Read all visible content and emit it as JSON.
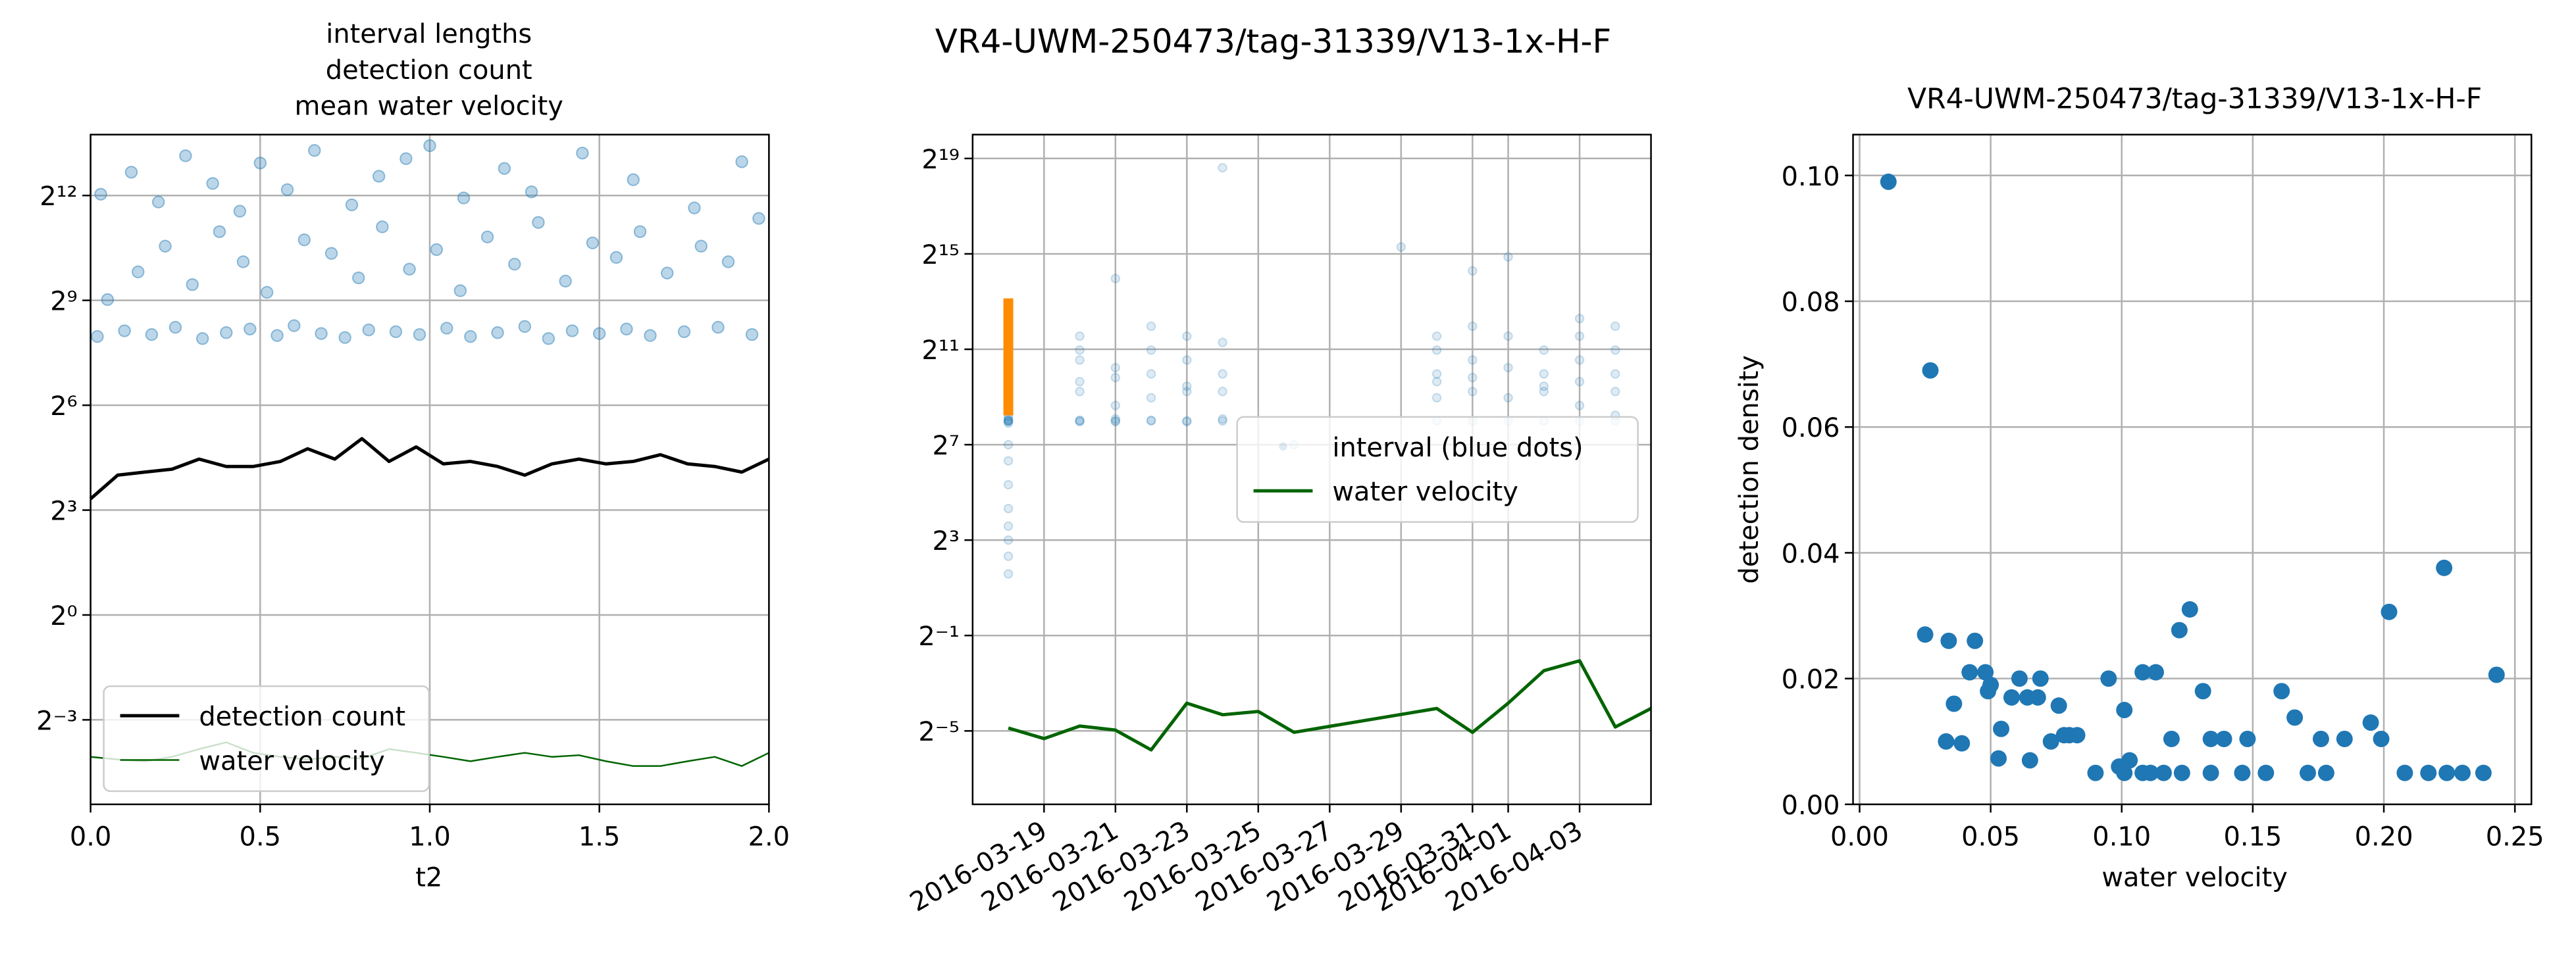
{
  "chart_data": [
    {
      "type": "line",
      "title": [
        "interval lengths",
        "detection count",
        "mean water velocity"
      ],
      "xlabel": "t2",
      "xlim": [
        0,
        2
      ],
      "xticks": [
        {
          "value": 0,
          "label": "0.0"
        },
        {
          "value": 0.5,
          "label": "0.5"
        },
        {
          "value": 1,
          "label": "1.0"
        },
        {
          "value": 1.5,
          "label": "1.5"
        },
        {
          "value": 2,
          "label": "2.0"
        }
      ],
      "yscale": "log",
      "ylim": [
        0.0234,
        13700
      ],
      "yticks": [
        {
          "value": 0.125,
          "label": "2⁻³"
        },
        {
          "value": 1,
          "label": "2⁰"
        },
        {
          "value": 8,
          "label": "2³"
        },
        {
          "value": 64,
          "label": "2⁶"
        },
        {
          "value": 512,
          "label": "2⁹"
        },
        {
          "value": 4096,
          "label": "2¹²"
        }
      ],
      "grid": true,
      "legend": "lower left",
      "series": [
        {
          "type": "scatter",
          "color": "#1f77b4",
          "alpha": 0.3,
          "x": [
            0.02,
            0.1,
            0.18,
            0.25,
            0.33,
            0.4,
            0.47,
            0.55,
            0.6,
            0.68,
            0.75,
            0.82,
            0.9,
            0.97,
            1.05,
            1.12,
            1.2,
            1.28,
            1.35,
            1.42,
            1.5,
            1.58,
            1.65,
            1.75,
            1.85,
            1.95,
            0.05,
            0.14,
            0.22,
            0.3,
            0.38,
            0.45,
            0.52,
            0.63,
            0.71,
            0.79,
            0.86,
            0.94,
            1.02,
            1.09,
            1.17,
            1.25,
            1.32,
            1.4,
            1.48,
            1.55,
            1.62,
            1.7,
            1.8,
            1.88,
            1.97,
            0.03,
            0.12,
            0.2,
            0.28,
            0.36,
            0.44,
            0.5,
            0.58,
            0.66,
            0.77,
            0.85,
            0.93,
            1.0,
            1.1,
            1.22,
            1.3,
            1.45,
            1.6,
            1.78,
            1.92
          ],
          "values": [
            250,
            280,
            260,
            300,
            240,
            270,
            290,
            255,
            310,
            265,
            245,
            285,
            275,
            260,
            295,
            250,
            270,
            305,
            240,
            280,
            265,
            290,
            255,
            275,
            300,
            260,
            520,
            900,
            1500,
            700,
            2000,
            1100,
            600,
            1700,
            1300,
            800,
            2200,
            950,
            1400,
            620,
            1800,
            1050,
            2400,
            750,
            1600,
            1200,
            2000,
            880,
            1500,
            1100,
            2600,
            4200,
            6500,
            3600,
            9000,
            5200,
            3000,
            7800,
            4600,
            10000,
            3400,
            6000,
            8500,
            11000,
            3900,
            7000,
            4400,
            9500,
            5600,
            3200,
            8000
          ]
        },
        {
          "type": "line",
          "name": "detection count",
          "color": "#000000",
          "line_width": 2,
          "x": [
            0,
            0.08,
            0.16,
            0.24,
            0.32,
            0.4,
            0.48,
            0.56,
            0.64,
            0.72,
            0.8,
            0.88,
            0.96,
            1.04,
            1.12,
            1.2,
            1.28,
            1.36,
            1.44,
            1.52,
            1.6,
            1.68,
            1.76,
            1.84,
            1.92,
            2.0
          ],
          "values": [
            10,
            16,
            17,
            18,
            22,
            19,
            19,
            21,
            27,
            22,
            33,
            21,
            28,
            20,
            21,
            19,
            16,
            20,
            22,
            20,
            21,
            24,
            20,
            19,
            17,
            22
          ]
        },
        {
          "type": "line",
          "name": "water velocity",
          "color": "#006400",
          "line_width": 1,
          "x": [
            0,
            0.08,
            0.16,
            0.24,
            0.32,
            0.4,
            0.48,
            0.56,
            0.64,
            0.72,
            0.8,
            0.88,
            0.96,
            1.04,
            1.12,
            1.2,
            1.28,
            1.36,
            1.44,
            1.52,
            1.6,
            1.68,
            1.76,
            1.84,
            1.92,
            2.0
          ],
          "values": [
            0.06,
            0.057,
            0.055,
            0.06,
            0.07,
            0.08,
            0.065,
            0.06,
            0.057,
            0.06,
            0.058,
            0.07,
            0.065,
            0.06,
            0.055,
            0.06,
            0.065,
            0.06,
            0.062,
            0.055,
            0.05,
            0.05,
            0.055,
            0.06,
            0.05,
            0.065
          ]
        }
      ]
    },
    {
      "type": "line",
      "title": "VR4-UWM-250473/tag-31339/V13-1x-H-F",
      "xlim": [
        "2016-03-17",
        "2016-04-05"
      ],
      "xticks": [
        "2016-03-19",
        "2016-03-21",
        "2016-03-23",
        "2016-03-25",
        "2016-03-27",
        "2016-03-29",
        "2016-03-31",
        "2016-04-01",
        "2016-04-03"
      ],
      "xtick_rotation": 30,
      "yscale": "log",
      "ylim": [
        0.0037,
        1048576
      ],
      "yticks": [
        {
          "value": 0.03125,
          "label": "2⁻⁵"
        },
        {
          "value": 0.5,
          "label": "2⁻¹"
        },
        {
          "value": 8,
          "label": "2³"
        },
        {
          "value": 128,
          "label": "2⁷"
        },
        {
          "value": 2048,
          "label": "2¹¹"
        },
        {
          "value": 32768,
          "label": "2¹⁵"
        },
        {
          "value": 524288,
          "label": "2¹⁹"
        }
      ],
      "grid": true,
      "legend": "center right",
      "series": [
        {
          "type": "scatter",
          "name": "interval (blue dots)",
          "color": "#1f77b4",
          "alpha": 0.15,
          "x": [
            "2016-03-18",
            "2016-03-18",
            "2016-03-18",
            "2016-03-18",
            "2016-03-18",
            "2016-03-18",
            "2016-03-18",
            "2016-03-18",
            "2016-03-18",
            "2016-03-18",
            "2016-03-18",
            "2016-03-18",
            "2016-03-18",
            "2016-03-18",
            "2016-03-18",
            "2016-03-20",
            "2016-03-20",
            "2016-03-20",
            "2016-03-20",
            "2016-03-20",
            "2016-03-20",
            "2016-03-20",
            "2016-03-20",
            "2016-03-21",
            "2016-03-21",
            "2016-03-21",
            "2016-03-21",
            "2016-03-21",
            "2016-03-21",
            "2016-03-21",
            "2016-03-22",
            "2016-03-22",
            "2016-03-22",
            "2016-03-22",
            "2016-03-22",
            "2016-03-22",
            "2016-03-23",
            "2016-03-23",
            "2016-03-23",
            "2016-03-23",
            "2016-03-23",
            "2016-03-23",
            "2016-03-24",
            "2016-03-24",
            "2016-03-24",
            "2016-03-24",
            "2016-03-24",
            "2016-03-24",
            "2016-03-26",
            "2016-03-29",
            "2016-03-30",
            "2016-03-30",
            "2016-03-30",
            "2016-03-30",
            "2016-03-30",
            "2016-03-30",
            "2016-03-31",
            "2016-03-31",
            "2016-03-31",
            "2016-03-31",
            "2016-03-31",
            "2016-03-31",
            "2016-04-01",
            "2016-04-01",
            "2016-04-01",
            "2016-04-01",
            "2016-04-01",
            "2016-04-02",
            "2016-04-02",
            "2016-04-02",
            "2016-04-02",
            "2016-04-02",
            "2016-04-03",
            "2016-04-03",
            "2016-04-03",
            "2016-04-03",
            "2016-04-03",
            "2016-04-03",
            "2016-04-04",
            "2016-04-04",
            "2016-04-04",
            "2016-04-04",
            "2016-04-04",
            "2016-04-04"
          ],
          "values": [
            256,
            256,
            270,
            250,
            260,
            290,
            240,
            3,
            5,
            8,
            12,
            20,
            40,
            80,
            128,
            256,
            260,
            250,
            600,
            1500,
            3000,
            800,
            2000,
            256,
            250,
            270,
            400,
            900,
            1200,
            16000,
            256,
            260,
            500,
            2000,
            1000,
            4000,
            256,
            250,
            700,
            1500,
            3000,
            600,
            256,
            270,
            1000,
            2500,
            400000,
            600,
            128,
            40000,
            256,
            500,
            1000,
            3000,
            800,
            2000,
            256,
            600,
            4000,
            1500,
            20000,
            900,
            256,
            500,
            1200,
            3000,
            30000,
            256,
            700,
            2000,
            600,
            1000,
            256,
            400,
            1500,
            5000,
            3000,
            800,
            256,
            600,
            2000,
            1000,
            4000,
            300
          ]
        },
        {
          "type": "line",
          "color": "#ff8c00",
          "line_width": 6,
          "x": [
            "2016-03-18",
            "2016-03-18"
          ],
          "values": [
            300,
            9000
          ]
        },
        {
          "type": "line",
          "name": "water velocity",
          "color": "#006400",
          "line_width": 2,
          "x": [
            "2016-03-18",
            "2016-03-19",
            "2016-03-20",
            "2016-03-21",
            "2016-03-22",
            "2016-03-23",
            "2016-03-24",
            "2016-03-25",
            "2016-03-26",
            "2016-03-30",
            "2016-03-31",
            "2016-04-01",
            "2016-04-02",
            "2016-04-03",
            "2016-04-04",
            "2016-04-05"
          ],
          "values": [
            0.034,
            0.025,
            0.036,
            0.032,
            0.018,
            0.07,
            0.05,
            0.055,
            0.03,
            0.06,
            0.03,
            0.07,
            0.18,
            0.24,
            0.035,
            0.06
          ]
        }
      ]
    },
    {
      "type": "scatter",
      "title": "VR4-UWM-250473/tag-31339/V13-1x-H-F",
      "xlabel": "water velocity",
      "ylabel": "detection density",
      "xlim": [
        -0.0025,
        0.2563
      ],
      "xticks": [
        {
          "value": 0,
          "label": "0.00"
        },
        {
          "value": 0.05,
          "label": "0.05"
        },
        {
          "value": 0.1,
          "label": "0.10"
        },
        {
          "value": 0.15,
          "label": "0.15"
        },
        {
          "value": 0.2,
          "label": "0.20"
        },
        {
          "value": 0.25,
          "label": "0.25"
        }
      ],
      "ylim": [
        0,
        0.1065
      ],
      "yticks": [
        {
          "value": 0,
          "label": "0.00"
        },
        {
          "value": 0.02,
          "label": "0.02"
        },
        {
          "value": 0.04,
          "label": "0.04"
        },
        {
          "value": 0.06,
          "label": "0.06"
        },
        {
          "value": 0.08,
          "label": "0.08"
        },
        {
          "value": 0.1,
          "label": "0.10"
        }
      ],
      "grid": true,
      "series": [
        {
          "type": "scatter",
          "color": "#1f77b4",
          "alpha": 1,
          "x": [
            0.011,
            0.027,
            0.025,
            0.034,
            0.044,
            0.042,
            0.048,
            0.05,
            0.036,
            0.033,
            0.039,
            0.049,
            0.054,
            0.053,
            0.058,
            0.061,
            0.064,
            0.068,
            0.069,
            0.065,
            0.073,
            0.076,
            0.078,
            0.083,
            0.08,
            0.09,
            0.095,
            0.101,
            0.099,
            0.103,
            0.101,
            0.108,
            0.108,
            0.113,
            0.111,
            0.116,
            0.119,
            0.122,
            0.126,
            0.123,
            0.131,
            0.134,
            0.139,
            0.134,
            0.146,
            0.148,
            0.155,
            0.161,
            0.166,
            0.171,
            0.176,
            0.178,
            0.185,
            0.195,
            0.199,
            0.202,
            0.208,
            0.217,
            0.223,
            0.224,
            0.23,
            0.238,
            0.243
          ],
          "values": [
            0.099,
            0.069,
            0.027,
            0.026,
            0.026,
            0.021,
            0.021,
            0.019,
            0.016,
            0.01,
            0.0097,
            0.018,
            0.012,
            0.0073,
            0.017,
            0.02,
            0.017,
            0.017,
            0.02,
            0.007,
            0.01,
            0.0157,
            0.011,
            0.011,
            0.011,
            0.005,
            0.02,
            0.015,
            0.006,
            0.007,
            0.005,
            0.005,
            0.021,
            0.021,
            0.005,
            0.005,
            0.0104,
            0.0277,
            0.031,
            0.005,
            0.018,
            0.0104,
            0.0104,
            0.005,
            0.005,
            0.0104,
            0.005,
            0.018,
            0.0138,
            0.005,
            0.0104,
            0.005,
            0.0104,
            0.013,
            0.0104,
            0.0306,
            0.005,
            0.005,
            0.0376,
            0.005,
            0.005,
            0.005,
            0.0206
          ]
        }
      ]
    }
  ]
}
